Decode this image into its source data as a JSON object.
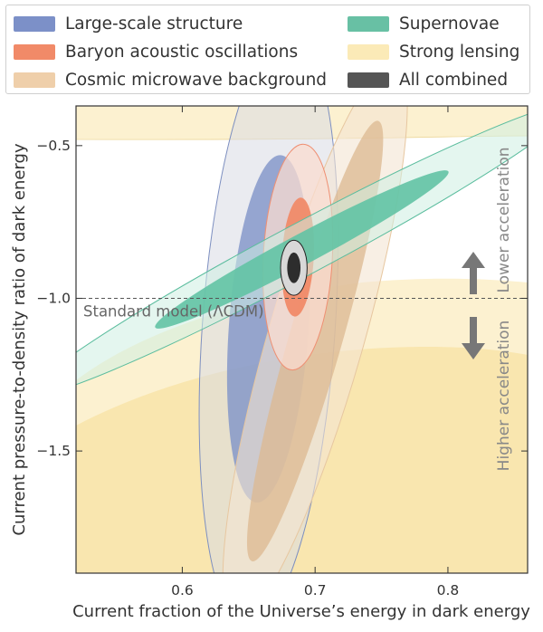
{
  "chart_data": {
    "type": "contour",
    "xlabel": "Current fraction of the Universe’s energy in dark energy",
    "ylabel": "Current pressure-to-density ratio of dark energy",
    "xlim": [
      0.52,
      0.86
    ],
    "ylim": [
      -1.9,
      -0.37
    ],
    "xticks": [
      0.6,
      0.7,
      0.8
    ],
    "xtick_labels": [
      "0.6",
      "0.7",
      "0.8"
    ],
    "yticks": [
      -0.5,
      -1.0,
      -1.5
    ],
    "ytick_labels": [
      "−0.5",
      "−1.0",
      "−1.5"
    ],
    "grid": false,
    "legend_position": "top",
    "series": [
      {
        "name": "Large-scale structure",
        "color": "#8094c8",
        "center": [
          0.665,
          -1.1
        ],
        "inner_semi_axes": [
          0.03,
          0.57
        ],
        "outer_semi_axes": [
          0.05,
          0.98
        ],
        "tilt_deg": 4
      },
      {
        "name": "Baryon acoustic oscillations",
        "color": "#f08a68",
        "center": [
          0.687,
          -0.865
        ],
        "inner_semi_axes": [
          0.012,
          0.195
        ],
        "outer_semi_axes": [
          0.026,
          0.37
        ],
        "tilt_deg": 3
      },
      {
        "name": "Cosmic microwave background",
        "color": "#dcb890",
        "center": [
          0.7,
          -1.14
        ],
        "inner_semi_axes": [
          0.02,
          0.75
        ],
        "outer_semi_axes": [
          0.036,
          0.95
        ],
        "tilt_deg": 16
      },
      {
        "name": "Supernovae",
        "color": "#62c3a4",
        "center": [
          0.69,
          -0.84
        ],
        "inner_semi_axes": [
          0.125,
          0.05
        ],
        "outer_semi_axes": [
          0.23,
          0.085
        ],
        "tilt_deg": -28
      },
      {
        "name": "Strong lensing",
        "color": "#f6dc96",
        "description_visible": "broad bands above -0.43 and below about -0.95"
      },
      {
        "name": "All combined",
        "color": "#444444",
        "center": [
          0.684,
          -0.9
        ],
        "inner_semi_axes": [
          0.005,
          0.05
        ],
        "outer_semi_axes": [
          0.01,
          0.09
        ],
        "tilt_deg": 0
      }
    ],
    "annotations": [
      {
        "text": "Standard model (ΛCDM)",
        "y": -1.0,
        "type": "dashed-line"
      },
      {
        "text": "Lower acceleration",
        "direction": "up"
      },
      {
        "text": "Higher acceleration",
        "direction": "down"
      }
    ]
  },
  "legend": {
    "items": [
      {
        "label": "Large-scale structure",
        "color": "#7c90c8"
      },
      {
        "label": "Baryon acoustic oscillations",
        "color": "#f18a68"
      },
      {
        "label": "Cosmic microwave background",
        "color": "#efcfaa"
      },
      {
        "label": "Supernovae",
        "color": "#68c0a4"
      },
      {
        "label": "Strong lensing",
        "color": "#fbeab7"
      },
      {
        "label": "All combined",
        "color": "#555555"
      }
    ]
  }
}
